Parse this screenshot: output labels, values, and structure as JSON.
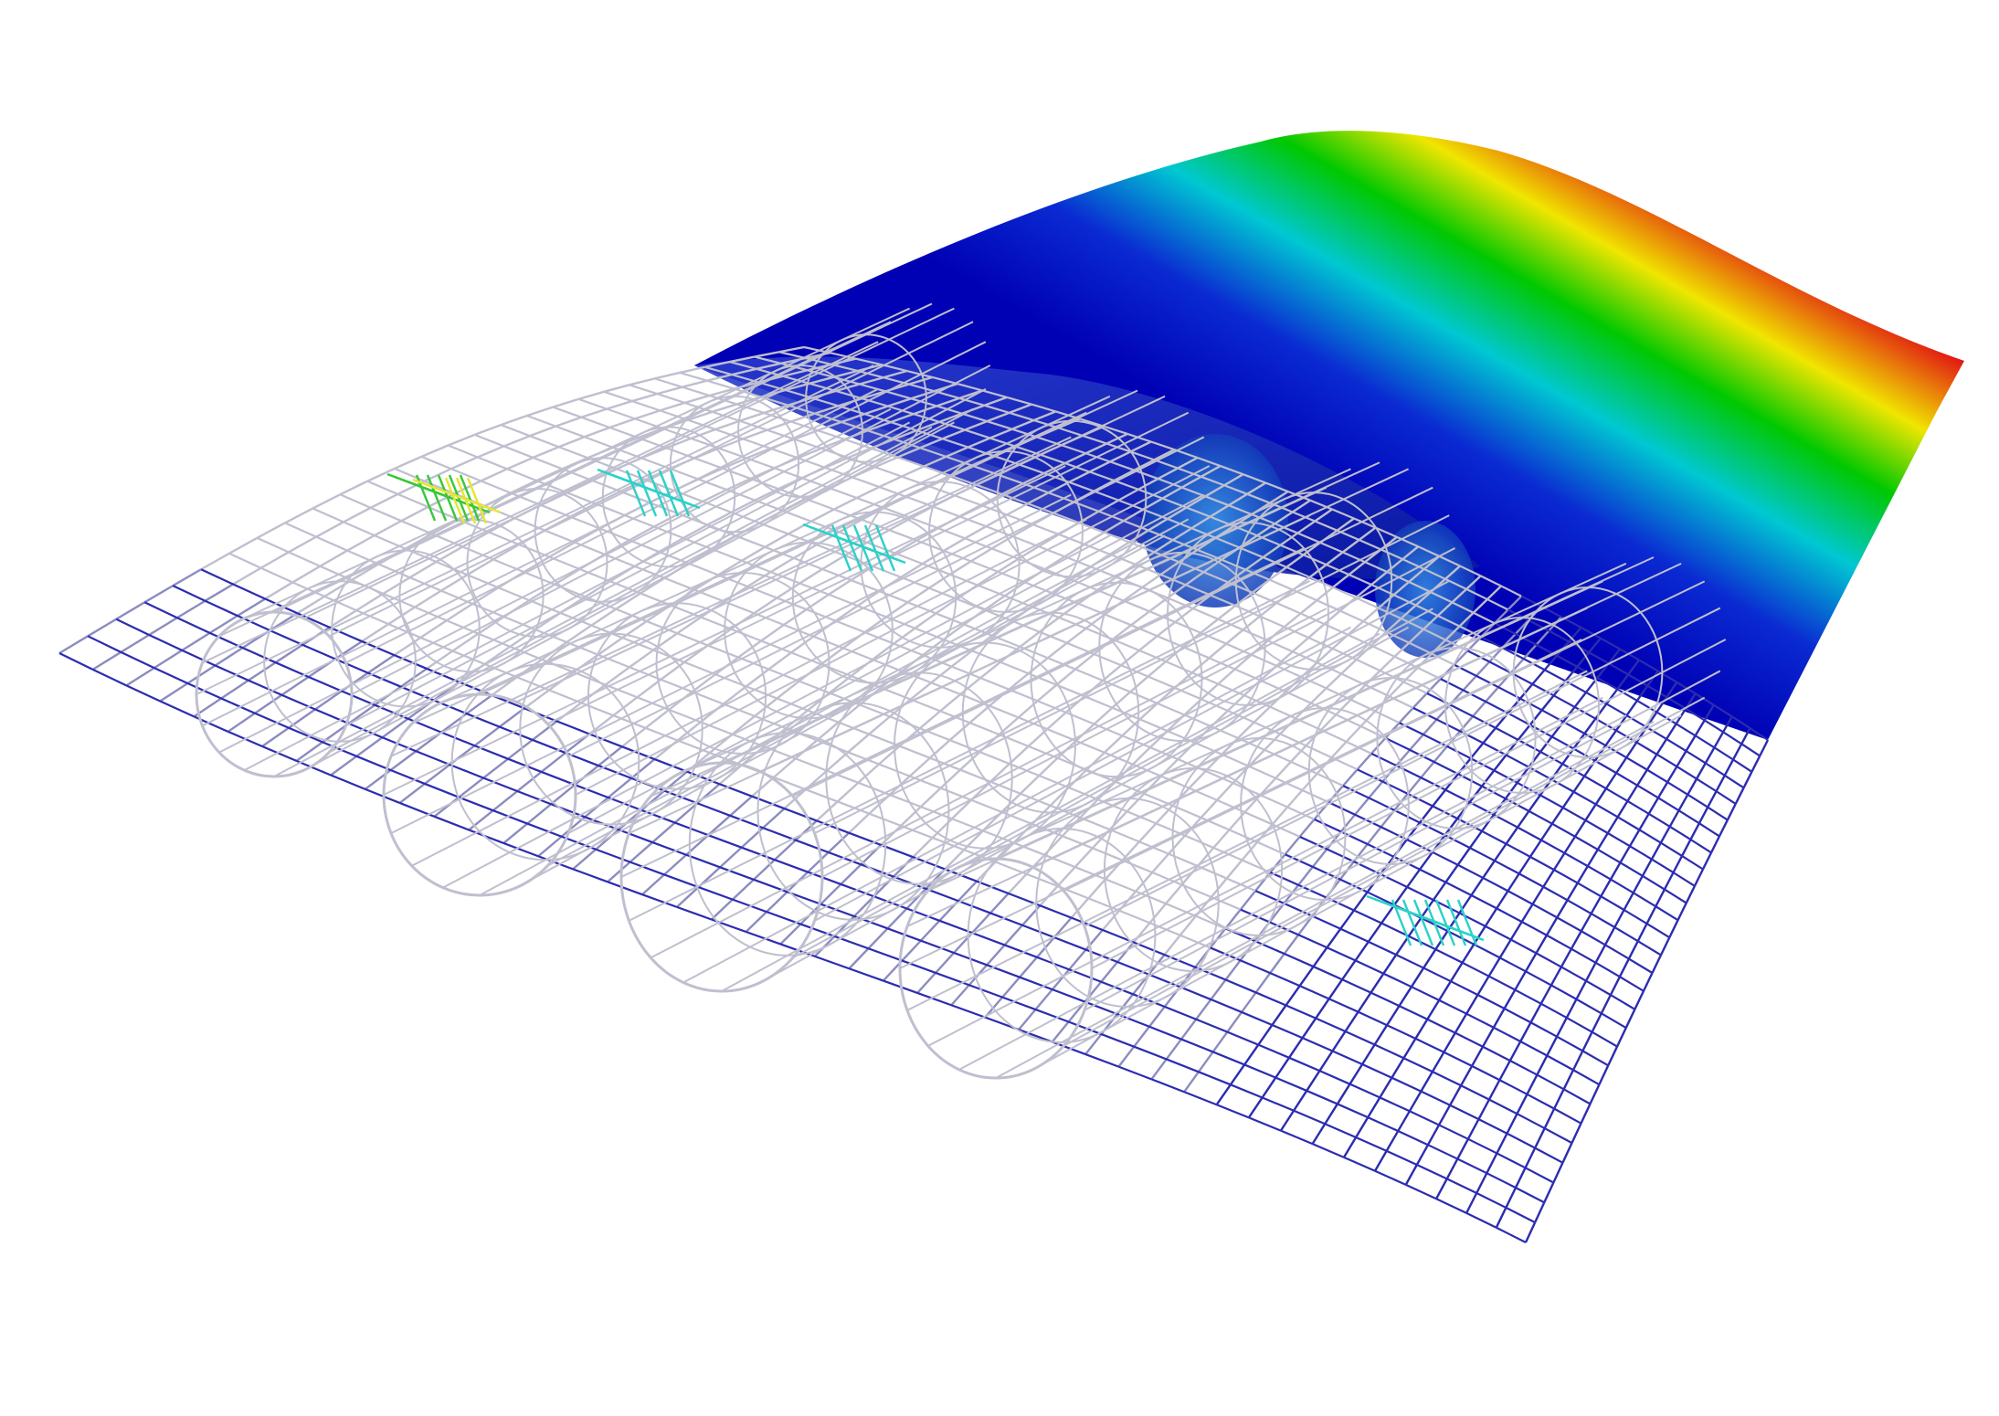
{
  "scene": {
    "background_color": "#ffffff",
    "colormap": [
      "#0000b4",
      "#0a3cdc",
      "#00c8d2",
      "#00c800",
      "#f0e600",
      "#e11414",
      "#aa0a8c"
    ],
    "mesh_colors": {
      "light": "#bfbfcf",
      "mid": "#8c8cc0",
      "dark": "#2c2cb0",
      "hot_teal": "#2ad2c8",
      "hot_green": "#38c838",
      "hot_yellow": "#e6e632"
    },
    "icon_names": [
      "wireframe-wing-mesh",
      "spar-tubes",
      "stress-colored-skin"
    ]
  }
}
